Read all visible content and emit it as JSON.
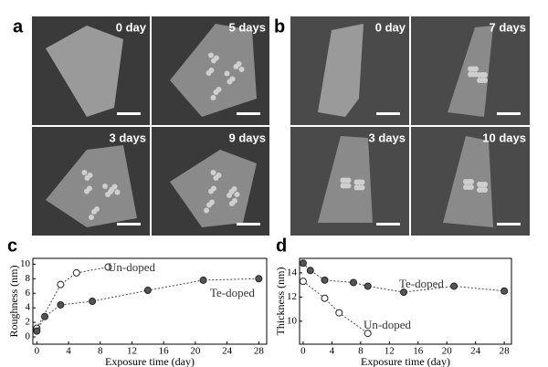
{
  "figure": {
    "panels": [
      {
        "label": "a",
        "images": [
          "0 day",
          "5 days",
          "3 days",
          "9 days"
        ]
      },
      {
        "label": "b",
        "images": [
          "0 day",
          "7 days",
          "3 days",
          "10 days"
        ]
      }
    ]
  },
  "chart_data": [
    {
      "type": "line",
      "label": "c",
      "y_label": "Roughness (nm)",
      "x_label": "Exposure time (day)",
      "xlim": [
        -0.5,
        29
      ],
      "xticks": [
        0,
        4,
        8,
        12,
        16,
        20,
        24,
        28
      ],
      "ylim": [
        -1,
        10.8
      ],
      "yticks": [
        0,
        2,
        4,
        6,
        8,
        10
      ],
      "series": [
        {
          "name": "Un-doped",
          "color": "#ffffff",
          "x": [
            0,
            3,
            5,
            9
          ],
          "values": [
            1.2,
            7.2,
            8.8,
            9.6
          ]
        },
        {
          "name": "Te-doped",
          "color": "#555555",
          "x": [
            0,
            1,
            3,
            7,
            14,
            21,
            28
          ],
          "values": [
            0.8,
            2.8,
            4.4,
            4.9,
            6.4,
            7.8,
            8.0
          ]
        }
      ]
    },
    {
      "type": "line",
      "label": "d",
      "y_label": "Thickness (nm)",
      "x_label": "Exposure time (day)",
      "xlim": [
        -0.5,
        29
      ],
      "xticks": [
        0,
        4,
        8,
        12,
        16,
        20,
        24,
        28
      ],
      "ylim": [
        8.1,
        15.2
      ],
      "yticks": [
        10,
        12,
        14
      ],
      "series": [
        {
          "name": "Te-doped",
          "color": "#555555",
          "x": [
            0,
            1,
            3,
            7,
            9,
            14,
            21,
            28
          ],
          "values": [
            14.8,
            14.2,
            13.4,
            13.2,
            12.9,
            12.4,
            12.9,
            12.5
          ]
        },
        {
          "name": "Un-doped",
          "color": "#ffffff",
          "x": [
            0,
            3,
            5,
            9
          ],
          "values": [
            13.3,
            11.9,
            10.7,
            9.0
          ]
        }
      ]
    }
  ]
}
